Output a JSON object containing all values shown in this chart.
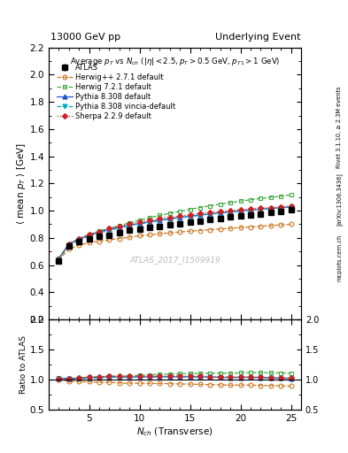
{
  "title_left": "13000 GeV pp",
  "title_right": "Underlying Event",
  "plot_title": "Average $p_T$ vs $N_{ch}$ ($|\\eta| < 2.5, p_T > 0.5$ GeV, $p_{T1} > 1$ GeV)",
  "xlabel": "$N_{ch}$ (Transverse)",
  "ylabel_main": "$\\langle$ mean $p_T$ $\\rangle$ [GeV]",
  "ylabel_ratio": "Ratio to ATLAS",
  "watermark": "ATLAS_2017_I1509919",
  "right_label_1": "Rivet 3.1.10, ≥ 2.3M events",
  "right_label_2": "[arXiv:1306.3436]",
  "right_label_3": "mcplots.cern.ch",
  "ylim_main": [
    0.2,
    2.2
  ],
  "ylim_ratio": [
    0.5,
    2.0
  ],
  "xlim": [
    1,
    26
  ],
  "nch_atlas": [
    2,
    3,
    4,
    5,
    6,
    7,
    8,
    9,
    10,
    11,
    12,
    13,
    14,
    15,
    16,
    17,
    18,
    19,
    20,
    21,
    22,
    23,
    24,
    25
  ],
  "atlas_y": [
    0.63,
    0.74,
    0.77,
    0.79,
    0.81,
    0.82,
    0.84,
    0.855,
    0.865,
    0.875,
    0.885,
    0.895,
    0.905,
    0.915,
    0.925,
    0.935,
    0.945,
    0.955,
    0.96,
    0.965,
    0.975,
    0.985,
    0.995,
    1.005
  ],
  "atlas_err": [
    0.015,
    0.012,
    0.01,
    0.01,
    0.01,
    0.01,
    0.01,
    0.01,
    0.01,
    0.01,
    0.01,
    0.01,
    0.01,
    0.01,
    0.01,
    0.01,
    0.01,
    0.01,
    0.01,
    0.01,
    0.01,
    0.01,
    0.01,
    0.01
  ],
  "nch_mc": [
    2,
    3,
    4,
    5,
    6,
    7,
    8,
    9,
    10,
    11,
    12,
    13,
    14,
    15,
    16,
    17,
    18,
    19,
    20,
    21,
    22,
    23,
    24,
    25
  ],
  "herwig_pp_y": [
    0.635,
    0.72,
    0.745,
    0.765,
    0.775,
    0.785,
    0.795,
    0.805,
    0.815,
    0.822,
    0.83,
    0.837,
    0.843,
    0.849,
    0.854,
    0.86,
    0.865,
    0.87,
    0.876,
    0.88,
    0.885,
    0.89,
    0.895,
    0.9
  ],
  "herwig7_y": [
    0.65,
    0.755,
    0.795,
    0.825,
    0.85,
    0.87,
    0.89,
    0.91,
    0.93,
    0.948,
    0.965,
    0.98,
    0.995,
    1.01,
    1.023,
    1.036,
    1.048,
    1.059,
    1.07,
    1.08,
    1.09,
    1.098,
    1.107,
    1.115
  ],
  "pythia8_y": [
    0.645,
    0.755,
    0.79,
    0.82,
    0.843,
    0.862,
    0.878,
    0.892,
    0.906,
    0.918,
    0.93,
    0.94,
    0.95,
    0.959,
    0.968,
    0.976,
    0.984,
    0.991,
    0.998,
    1.004,
    1.01,
    1.016,
    1.022,
    1.027
  ],
  "pythia8_vincia_y": [
    0.64,
    0.748,
    0.783,
    0.812,
    0.835,
    0.855,
    0.872,
    0.888,
    0.902,
    0.914,
    0.926,
    0.937,
    0.947,
    0.957,
    0.965,
    0.974,
    0.982,
    0.989,
    0.996,
    1.003,
    1.009,
    1.015,
    1.02,
    1.025
  ],
  "sherpa_y": [
    0.645,
    0.755,
    0.793,
    0.823,
    0.847,
    0.868,
    0.886,
    0.902,
    0.916,
    0.929,
    0.94,
    0.951,
    0.961,
    0.97,
    0.978,
    0.986,
    0.993,
    1.0,
    1.007,
    1.013,
    1.018,
    1.023,
    1.028,
    1.033
  ],
  "color_herwig_pp": "#cc7722",
  "color_herwig7": "#44aa44",
  "color_pythia8": "#2255cc",
  "color_pythia8_vincia": "#00aacc",
  "color_sherpa": "#cc2222"
}
